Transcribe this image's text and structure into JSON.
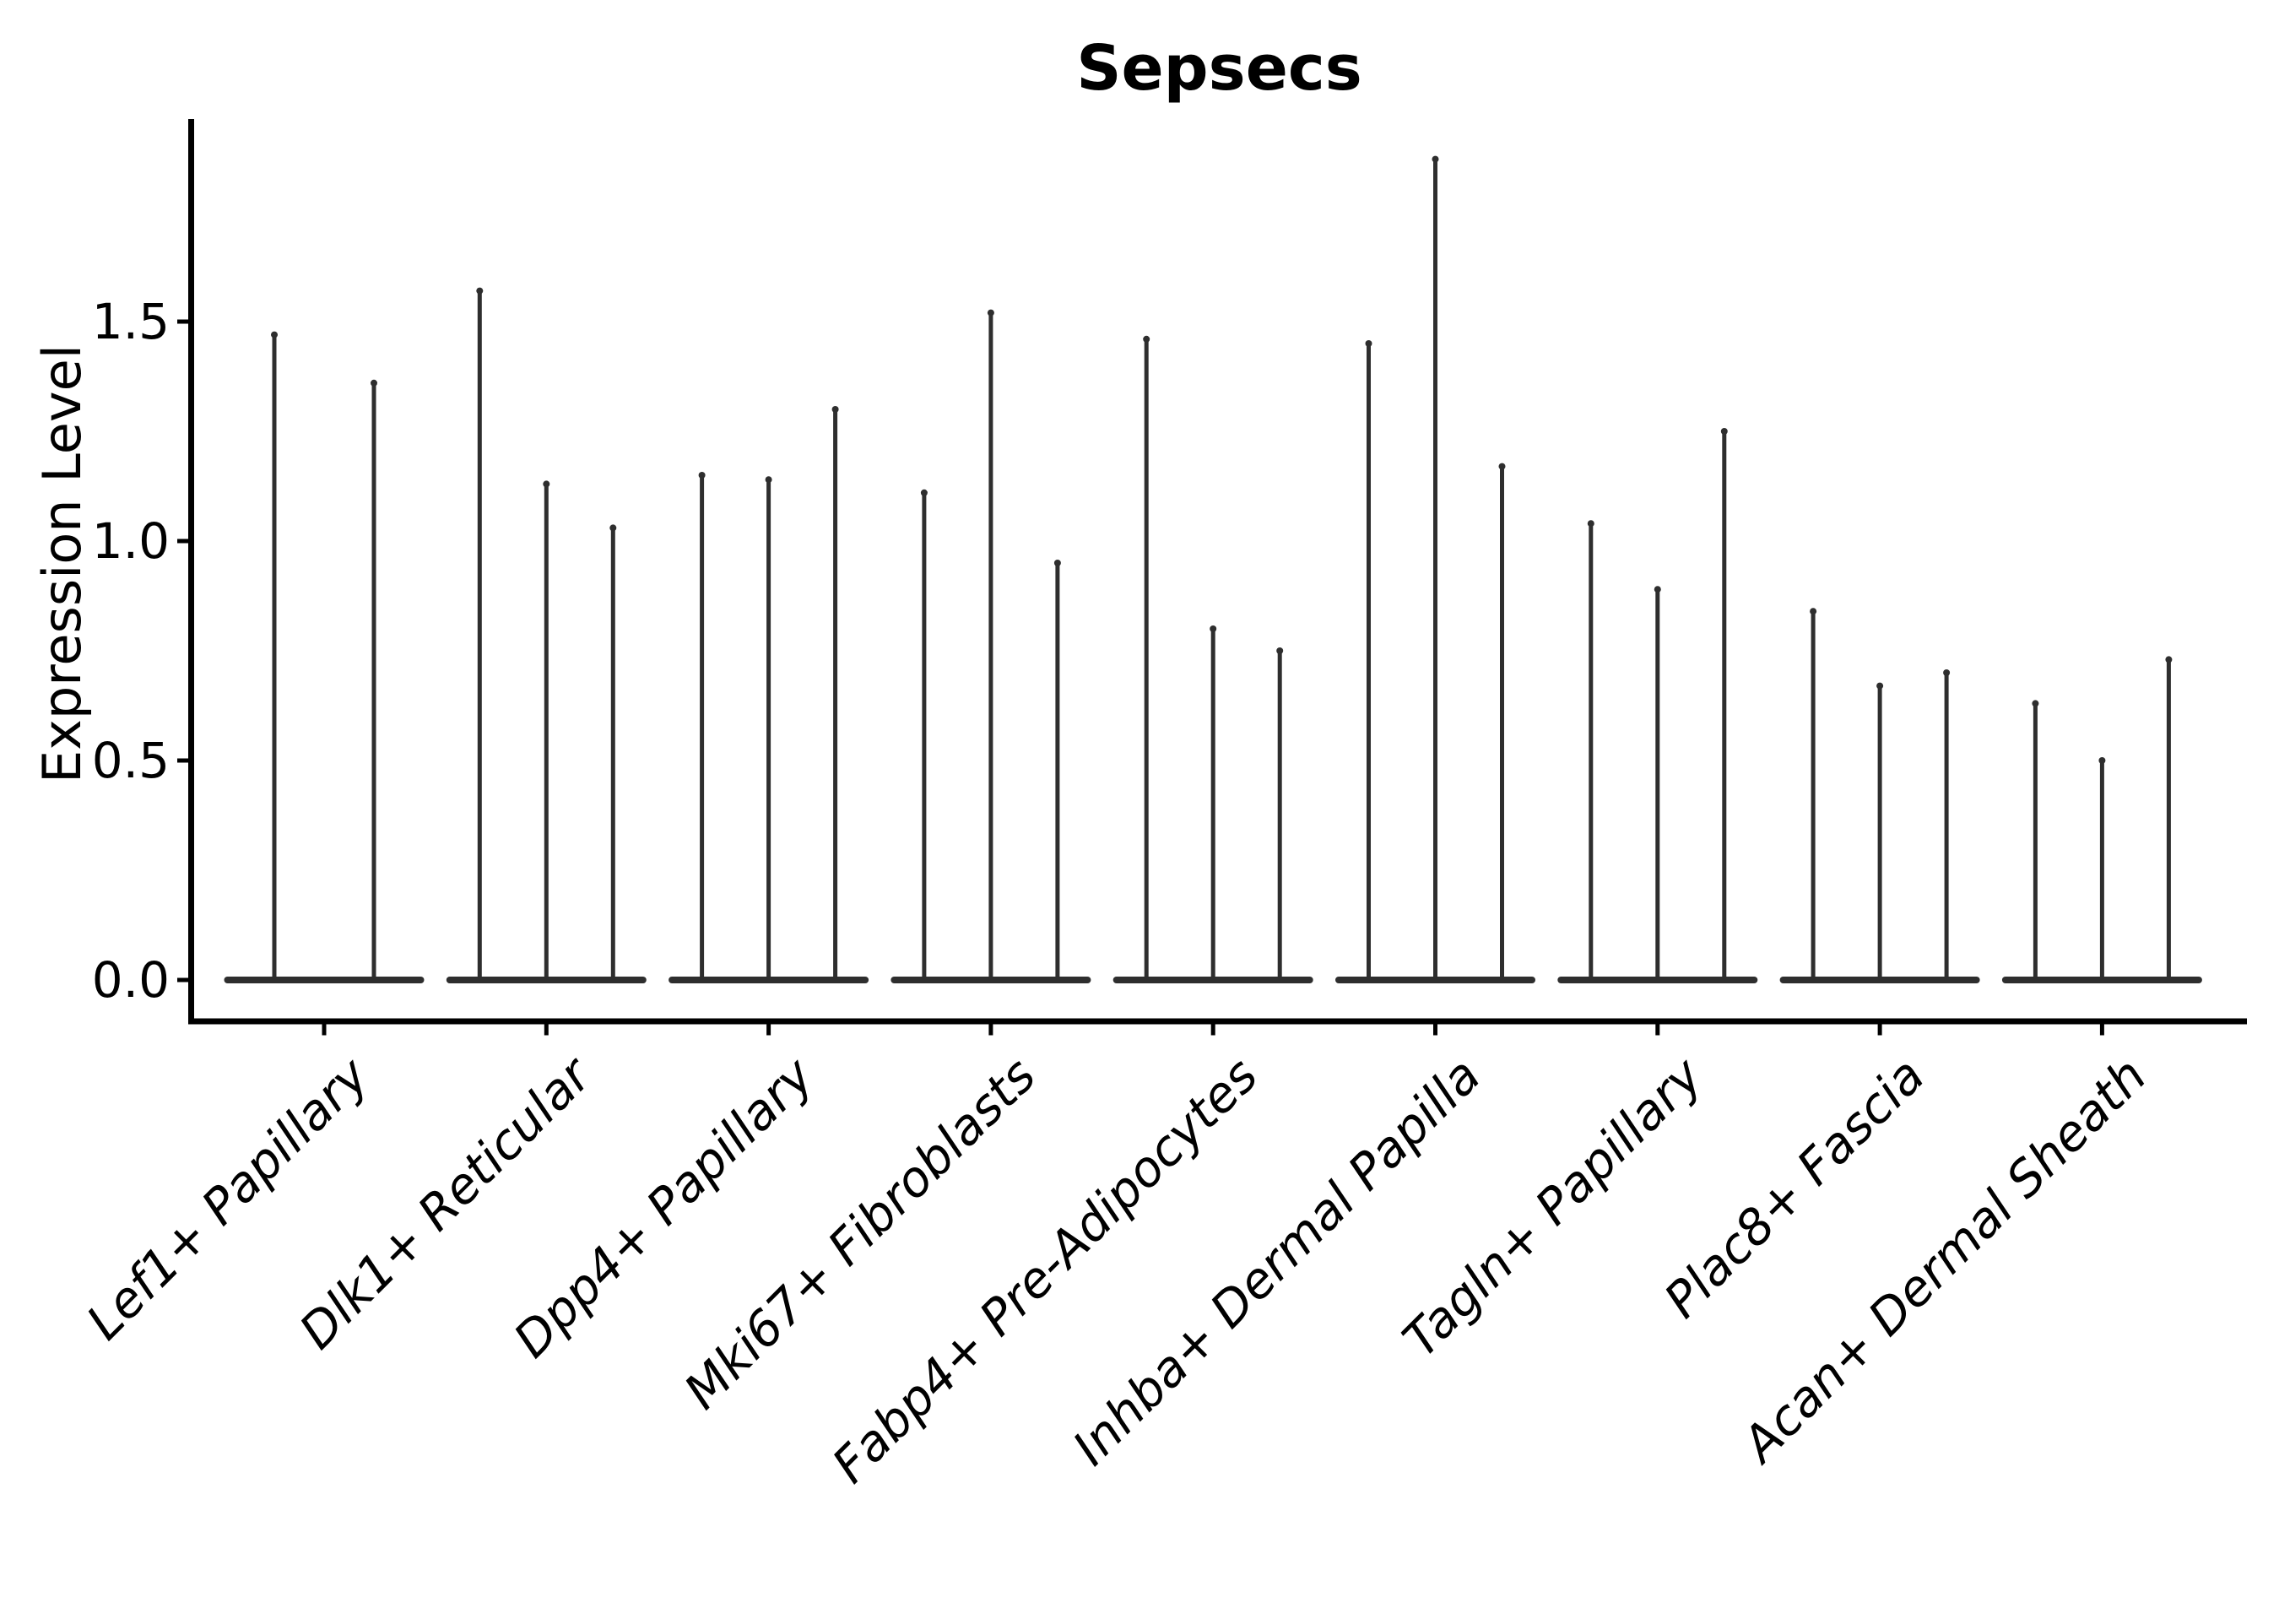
{
  "chart_data": {
    "type": "violin",
    "title": "Sepsecs",
    "ylabel": "Expression Level",
    "xlabel": "",
    "grid": false,
    "legend": null,
    "ylim": [
      0,
      1.96
    ],
    "ytick_values": [
      0.0,
      0.5,
      1.0,
      1.5
    ],
    "ytick_labels": [
      "0.0",
      "0.5",
      "1.0",
      "1.5"
    ],
    "violin_min_value": 0.0,
    "colors": {
      "violin": "#2e2e2e",
      "axis": "#000000",
      "text": "#000000",
      "background": "#ffffff"
    },
    "groups": [
      {
        "category": "Lef1+ Papillary",
        "violin_max_values": [
          1.47,
          1.36
        ]
      },
      {
        "category": "Dlk1+ Reticular",
        "violin_max_values": [
          1.57,
          1.13,
          1.03
        ]
      },
      {
        "category": "Dpp4+ Papillary",
        "violin_max_values": [
          1.15,
          1.14,
          1.3
        ]
      },
      {
        "category": "Mki67+ Fibroblasts",
        "violin_max_values": [
          1.11,
          1.52,
          0.95
        ]
      },
      {
        "category": "Fabp4+ Pre-Adipocytes",
        "violin_max_values": [
          1.46,
          0.8,
          0.75
        ]
      },
      {
        "category": "Inhba+ Dermal Papilla",
        "violin_max_values": [
          1.45,
          1.87,
          1.17
        ]
      },
      {
        "category": "Tagln+ Papillary",
        "violin_max_values": [
          1.04,
          0.89,
          1.25
        ]
      },
      {
        "category": "Plac8+ Fascia",
        "violin_max_values": [
          0.84,
          0.67,
          0.7
        ]
      },
      {
        "category": "Acan+ Dermal Sheath",
        "violin_max_values": [
          0.63,
          0.5,
          0.73
        ]
      }
    ]
  }
}
